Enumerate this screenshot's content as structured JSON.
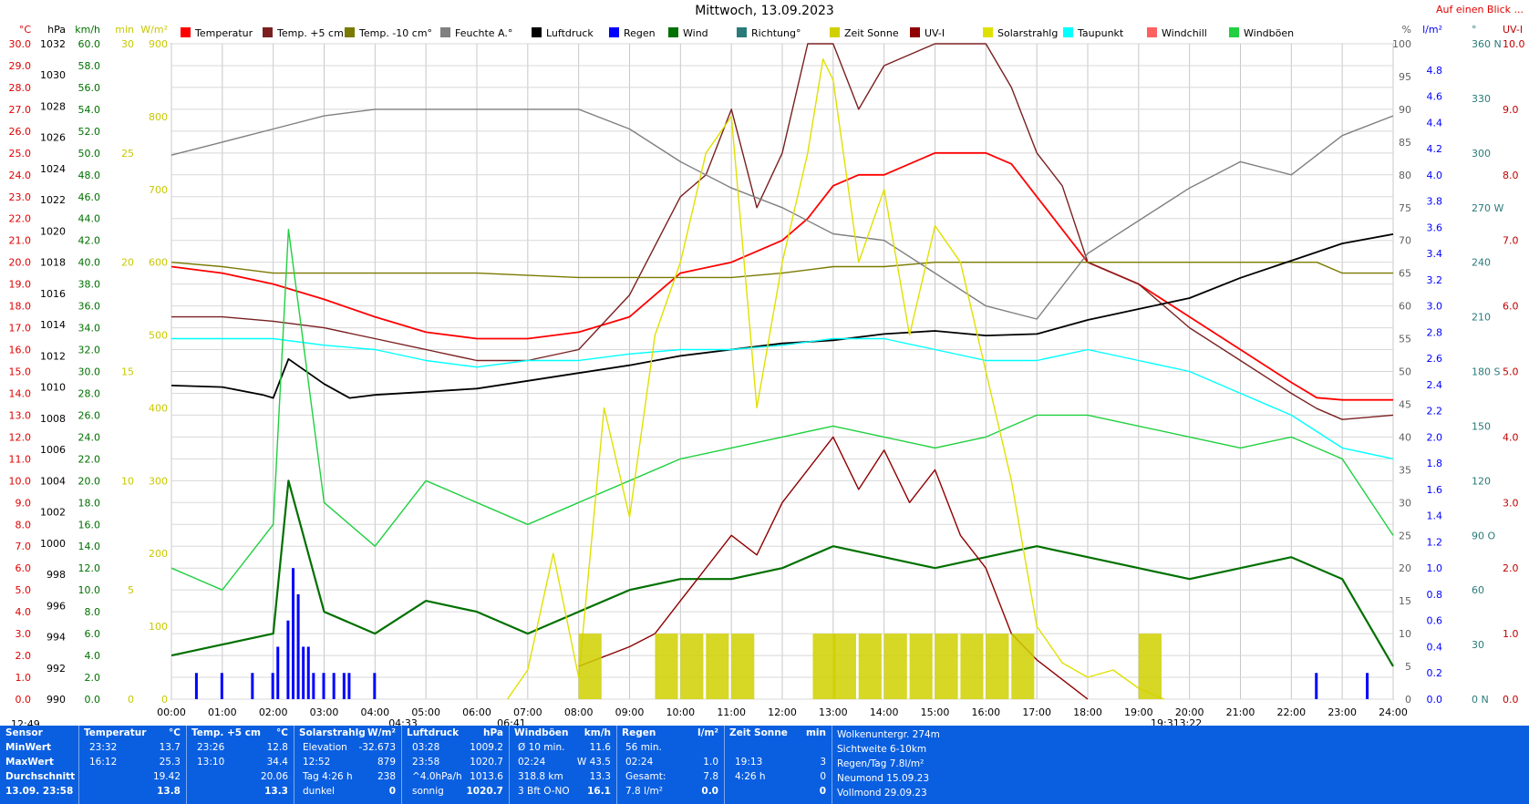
{
  "title": "Mittwoch, 13.09.2023",
  "corner_link": "Auf einen Blick ...",
  "legend": [
    {
      "label": "Temperatur",
      "color": "#ff0000"
    },
    {
      "label": "Temp. +5 cm°",
      "color": "#7a2020"
    },
    {
      "label": "Temp. -10 cm°",
      "color": "#7a7a00"
    },
    {
      "label": "Feuchte A.°",
      "color": "#808080"
    },
    {
      "label": "Luftdruck",
      "color": "#000000"
    },
    {
      "label": "Regen",
      "color": "#0000ff"
    },
    {
      "label": "Wind",
      "color": "#007000"
    },
    {
      "label": "Richtung°",
      "color": "#2a7a7a"
    },
    {
      "label": "Zeit Sonne",
      "color": "#d0d000"
    },
    {
      "label": "UV-I",
      "color": "#900000"
    },
    {
      "label": "Solarstrahlg",
      "color": "#e0e000"
    },
    {
      "label": "Taupunkt",
      "color": "#00ffff"
    },
    {
      "label": "Windchill",
      "color": "#ff6060"
    },
    {
      "label": "Windböen",
      "color": "#20d040"
    }
  ],
  "axes": {
    "temp": {
      "unit": "°C",
      "color": "#e00000",
      "ticks": [
        "30.0",
        "29.0",
        "28.0",
        "27.0",
        "26.0",
        "25.0",
        "24.0",
        "23.0",
        "22.0",
        "21.0",
        "20.0",
        "19.0",
        "18.0",
        "17.0",
        "16.0",
        "15.0",
        "14.0",
        "13.0",
        "12.0",
        "11.0",
        "10.0",
        "9.0",
        "8.0",
        "7.0",
        "6.0",
        "5.0",
        "4.0",
        "3.0",
        "2.0",
        "1.0",
        "0.0"
      ]
    },
    "hpa": {
      "unit": "hPa",
      "color": "#000000",
      "ticks": [
        "1032",
        "1030",
        "1028",
        "1026",
        "1024",
        "1022",
        "1020",
        "1018",
        "1016",
        "1014",
        "1012",
        "1010",
        "1008",
        "1006",
        "1004",
        "1002",
        "1000",
        "998",
        "996",
        "994",
        "992",
        "990"
      ]
    },
    "kmh": {
      "unit": "km/h",
      "color": "#007000",
      "ticks": [
        "60.0",
        "58.0",
        "56.0",
        "54.0",
        "52.0",
        "50.0",
        "48.0",
        "46.0",
        "44.0",
        "42.0",
        "40.0",
        "38.0",
        "36.0",
        "34.0",
        "32.0",
        "30.0",
        "28.0",
        "26.0",
        "24.0",
        "22.0",
        "20.0",
        "18.0",
        "16.0",
        "14.0",
        "12.0",
        "10.0",
        "8.0",
        "6.0",
        "4.0",
        "2.0",
        "0.0"
      ]
    },
    "min": {
      "unit": "min",
      "color": "#c8c800",
      "ticks": [
        "30",
        "25",
        "20",
        "15",
        "10",
        "5",
        "0"
      ]
    },
    "wm2": {
      "unit": "W/m²",
      "color": "#c8c800",
      "ticks": [
        "900",
        "800",
        "700",
        "600",
        "500",
        "400",
        "300",
        "200",
        "100",
        "0"
      ]
    },
    "pct": {
      "unit": "%",
      "color": "#606060",
      "ticks": [
        "100",
        "95",
        "90",
        "85",
        "80",
        "75",
        "70",
        "65",
        "60",
        "55",
        "50",
        "45",
        "40",
        "35",
        "30",
        "25",
        "20",
        "15",
        "10",
        "5",
        "0"
      ]
    },
    "rain": {
      "unit": "l/m²",
      "color": "#0000ff",
      "ticks": [
        "4.8",
        "4.6",
        "4.4",
        "4.2",
        "4.0",
        "3.8",
        "3.6",
        "3.4",
        "3.2",
        "3.0",
        "2.8",
        "2.6",
        "2.4",
        "2.2",
        "2.0",
        "1.8",
        "1.6",
        "1.4",
        "1.2",
        "1.0",
        "0.8",
        "0.6",
        "0.4",
        "0.2",
        "0.0"
      ]
    },
    "dir": {
      "unit": "°",
      "color": "#2a7a7a",
      "ticks": [
        "360 N",
        "330",
        "300",
        "270 W",
        "240",
        "210",
        "180 S",
        "150",
        "120",
        "90  O",
        "60",
        "30",
        "0   N"
      ]
    },
    "uv": {
      "unit": "UV-I",
      "color": "#c00000",
      "ticks": [
        "10.0",
        "9.0",
        "8.0",
        "7.0",
        "6.0",
        "5.0",
        "4.0",
        "3.0",
        "2.0",
        "1.0",
        "0.0"
      ]
    },
    "time": [
      "00:00",
      "01:00",
      "02:00",
      "03:00",
      "04:00",
      "05:00",
      "06:00",
      "07:00",
      "08:00",
      "09:00",
      "10:00",
      "11:00",
      "12:00",
      "13:00",
      "14:00",
      "15:00",
      "16:00",
      "17:00",
      "18:00",
      "19:00",
      "20:00",
      "21:00",
      "22:00",
      "23:00",
      "24:00"
    ]
  },
  "markers": {
    "left_time": "12:49",
    "sunrise": "04:33",
    "dawn": "06:41",
    "sunset": "19:31",
    "dusk": "3:22"
  },
  "chart_data": {
    "type": "line",
    "title": "Mittwoch, 13.09.2023",
    "x_unit": "hour of day",
    "xlim": [
      0,
      24
    ],
    "series": [
      {
        "name": "Temperatur",
        "axis": "temp",
        "x": [
          0,
          1,
          2,
          3,
          4,
          5,
          6,
          7,
          8,
          9,
          10,
          11,
          12,
          12.5,
          13,
          13.5,
          14,
          15,
          16,
          16.5,
          17,
          17.5,
          18,
          19,
          20,
          21,
          22,
          22.5,
          23,
          24
        ],
        "values": [
          19.8,
          19.5,
          19.0,
          18.3,
          17.5,
          16.8,
          16.5,
          16.5,
          16.8,
          17.5,
          19.5,
          20.0,
          21.0,
          22.0,
          23.5,
          24.0,
          24.0,
          25.0,
          25.0,
          24.5,
          23.0,
          21.5,
          20.0,
          19.0,
          17.5,
          16.0,
          14.5,
          13.8,
          13.7,
          13.7
        ]
      },
      {
        "name": "Temp. +5 cm°",
        "axis": "temp",
        "x": [
          0,
          1,
          2,
          3,
          4,
          5,
          6,
          7,
          8,
          9,
          10,
          10.5,
          11,
          11.5,
          12,
          12.5,
          13,
          13.5,
          14,
          15,
          16,
          16.5,
          17,
          17.5,
          18,
          19,
          20,
          21,
          22,
          22.5,
          23,
          24
        ],
        "values": [
          17.5,
          17.5,
          17.3,
          17.0,
          16.5,
          16.0,
          15.5,
          15.5,
          16.0,
          18.5,
          23.0,
          24.0,
          27.0,
          22.5,
          25.0,
          30.0,
          30.0,
          27.0,
          29.0,
          30.0,
          30.0,
          28.0,
          25.0,
          23.5,
          20.0,
          19.0,
          17.0,
          15.5,
          14.0,
          13.3,
          12.8,
          13.0
        ]
      },
      {
        "name": "Temp. -10 cm°",
        "axis": "temp",
        "x": [
          0,
          1,
          2,
          4,
          6,
          8,
          9,
          10,
          11,
          12,
          13,
          14,
          15,
          16,
          17,
          18,
          19,
          20,
          21,
          22,
          22.5,
          23,
          24
        ],
        "values": [
          20.0,
          19.8,
          19.5,
          19.5,
          19.5,
          19.3,
          19.3,
          19.3,
          19.3,
          19.5,
          19.8,
          19.8,
          20.0,
          20.0,
          20.0,
          20.0,
          20.0,
          20.0,
          20.0,
          20.0,
          20.0,
          19.5,
          19.5
        ]
      },
      {
        "name": "Feuchte A.°",
        "axis": "pct",
        "x": [
          0,
          1,
          2,
          3,
          4,
          5,
          6,
          7,
          8,
          9,
          10,
          11,
          12,
          13,
          14,
          15,
          16,
          17,
          18,
          19,
          20,
          21,
          22,
          23,
          24
        ],
        "values": [
          83,
          85,
          87,
          89,
          90,
          90,
          90,
          90,
          90,
          87,
          82,
          78,
          75,
          71,
          70,
          65,
          60,
          58,
          68,
          73,
          78,
          82,
          80,
          86,
          89
        ]
      },
      {
        "name": "Luftdruck",
        "axis": "hpa",
        "x": [
          0,
          1,
          1.8,
          2,
          2.3,
          3,
          3.5,
          4,
          5,
          6,
          7,
          8,
          9,
          10,
          11,
          12,
          13,
          14,
          15,
          16,
          17,
          18,
          19,
          20,
          21,
          22,
          23,
          24
        ],
        "values": [
          1010.1,
          1010.0,
          1009.5,
          1009.3,
          1011.8,
          1010.2,
          1009.3,
          1009.5,
          1009.7,
          1009.9,
          1010.4,
          1010.9,
          1011.4,
          1012.0,
          1012.4,
          1012.8,
          1013.0,
          1013.4,
          1013.6,
          1013.3,
          1013.4,
          1014.3,
          1015.0,
          1015.7,
          1017.0,
          1018.1,
          1019.2,
          1019.8
        ]
      },
      {
        "name": "Taupunkt",
        "axis": "temp",
        "x": [
          0,
          1,
          2,
          3,
          4,
          5,
          6,
          7,
          8,
          9,
          10,
          11,
          12,
          13,
          14,
          15,
          16,
          17,
          18,
          19,
          20,
          21,
          22,
          23,
          24
        ],
        "values": [
          16.5,
          16.5,
          16.5,
          16.2,
          16.0,
          15.5,
          15.2,
          15.5,
          15.5,
          15.8,
          16.0,
          16.0,
          16.2,
          16.5,
          16.5,
          16.0,
          15.5,
          15.5,
          16.0,
          15.5,
          15.0,
          14.0,
          13.0,
          11.5,
          11.0
        ]
      },
      {
        "name": "Wind",
        "axis": "kmh",
        "x": [
          0,
          1,
          2,
          2.3,
          3,
          4,
          5,
          6,
          7,
          8,
          9,
          10,
          11,
          12,
          13,
          14,
          15,
          16,
          17,
          18,
          19,
          20,
          21,
          22,
          23,
          24
        ],
        "values": [
          4,
          5,
          6,
          20,
          8,
          6,
          9,
          8,
          6,
          8,
          10,
          11,
          11,
          12,
          14,
          13,
          12,
          13,
          14,
          13,
          12,
          11,
          12,
          13,
          11,
          3
        ]
      },
      {
        "name": "Windböen",
        "axis": "kmh",
        "x": [
          0,
          1,
          2,
          2.3,
          3,
          4,
          5,
          6,
          7,
          8,
          9,
          10,
          11,
          12,
          13,
          14,
          15,
          16,
          17,
          18,
          19,
          20,
          21,
          22,
          23,
          24
        ],
        "values": [
          12,
          10,
          16,
          43,
          18,
          14,
          20,
          18,
          16,
          18,
          20,
          22,
          23,
          24,
          25,
          24,
          23,
          24,
          26,
          26,
          25,
          24,
          23,
          24,
          22,
          15
        ]
      },
      {
        "name": "Solarstrahlg",
        "axis": "wm2",
        "x": [
          6.6,
          7,
          7.5,
          8,
          8.5,
          9,
          9.5,
          10,
          10.5,
          11,
          11.5,
          12,
          12.5,
          12.8,
          13,
          13.5,
          14,
          14.5,
          15,
          15.5,
          16,
          16.5,
          17,
          17.5,
          18,
          18.5,
          19,
          19.5
        ],
        "values": [
          0,
          40,
          200,
          30,
          400,
          250,
          500,
          600,
          750,
          800,
          400,
          600,
          750,
          879,
          850,
          600,
          700,
          500,
          650,
          600,
          450,
          300,
          100,
          50,
          30,
          40,
          15,
          0
        ]
      },
      {
        "name": "Regen",
        "axis": "rain",
        "x": [
          0.5,
          1.0,
          1.6,
          2.0,
          2.1,
          2.3,
          2.4,
          2.5,
          2.6,
          2.7,
          2.8,
          3.0,
          3.2,
          3.4,
          3.5,
          4.0,
          22.5,
          23.5
        ],
        "values": [
          0.2,
          0.2,
          0.2,
          0.2,
          0.4,
          0.6,
          1.0,
          0.8,
          0.4,
          0.4,
          0.2,
          0.2,
          0.2,
          0.2,
          0.2,
          0.2,
          0.2,
          0.2
        ]
      },
      {
        "name": "UV-I",
        "axis": "uv",
        "x": [
          8,
          9,
          9.5,
          10,
          10.5,
          11,
          11.5,
          12,
          12.5,
          13,
          13.5,
          14,
          14.5,
          15,
          15.5,
          16,
          16.5,
          17,
          17.5,
          18
        ],
        "values": [
          0.5,
          0.8,
          1.0,
          1.5,
          2.0,
          2.5,
          2.2,
          3.0,
          3.5,
          4.0,
          3.2,
          3.8,
          3.0,
          3.5,
          2.5,
          2.0,
          1.0,
          0.6,
          0.3,
          0.0
        ]
      },
      {
        "name": "Zeit Sonne",
        "axis": "min",
        "x": [
          8.0,
          9.5,
          10.0,
          10.5,
          11.0,
          12.6,
          13.0,
          13.5,
          14.0,
          14.5,
          15.0,
          15.5,
          16.0,
          16.5,
          19.0
        ],
        "values": [
          3,
          3,
          3,
          3,
          3,
          3,
          3,
          3,
          3,
          3,
          3,
          3,
          3,
          3,
          3
        ]
      }
    ]
  },
  "table": {
    "header": {
      "sensor": "Sensor",
      "temp": "Temperatur",
      "temp_unit": "°C",
      "t5": "Temp. +5 cm",
      "t5_unit": "°C",
      "solar": "Solarstrahlg",
      "solar_unit": "W/m²",
      "press": "Luftdruck",
      "press_unit": "hPa",
      "gust": "Windböen",
      "gust_unit": "km/h",
      "rain": "Regen",
      "rain_unit": "l/m²",
      "sun": "Zeit Sonne",
      "sun_unit": "min"
    },
    "rows": [
      {
        "label": "MinWert",
        "temp_t": "23:32",
        "temp_v": "13.7",
        "t5_t": "23:26",
        "t5_v": "12.8",
        "solar_l": "Elevation",
        "solar_v": "-32.673",
        "press_t": "03:28",
        "press_v": "1009.2",
        "gust_l": "Ø 10 min.",
        "gust_v": "11.6",
        "rain_l": "56 min.",
        "rain_v": "",
        "sun_l": "",
        "sun_v": "",
        "info": "Wolkenuntergr.  274m"
      },
      {
        "label": "MaxWert",
        "temp_t": "16:12",
        "temp_v": "25.3",
        "t5_t": "13:10",
        "t5_v": "34.4",
        "solar_l": "12:52",
        "solar_v": "879",
        "press_t": "23:58",
        "press_v": "1020.7",
        "gust_l": "02:24",
        "gust_v": "W 43.5",
        "rain_l": "02:24",
        "rain_v": "1.0",
        "sun_l": "19:13",
        "sun_v": "3",
        "info": "Sichtweite    6-10km"
      },
      {
        "label": "Durchschnitt",
        "temp_t": "",
        "temp_v": "19.42",
        "t5_t": "",
        "t5_v": "20.06",
        "solar_l": "Tag 4:26 h",
        "solar_v": "238",
        "press_t": "^4.0hPa/h",
        "press_v": "1013.6",
        "gust_l": "318.8 km",
        "gust_v": "13.3",
        "rain_l": "Gesamt:",
        "rain_v": "7.8",
        "sun_l": "4:26 h",
        "sun_v": "0",
        "info": "Regen/Tag  7.8l/m²"
      },
      {
        "label": "13.09. 23:58",
        "temp_t": "",
        "temp_v": "13.8",
        "t5_t": "",
        "t5_v": "13.3",
        "solar_l": "dunkel",
        "solar_v": "0",
        "press_t": "sonnig",
        "press_v": "1020.7",
        "gust_l": "3 Bft O-NO",
        "gust_v": "16.1",
        "rain_l": "7.8 l/m²",
        "rain_v": "0.0",
        "sun_l": "",
        "sun_v": "0",
        "info": "Neumond   15.09.23"
      },
      {
        "label": "",
        "temp_t": "",
        "temp_v": "",
        "t5_t": "",
        "t5_v": "",
        "solar_l": "",
        "solar_v": "",
        "press_t": "",
        "press_v": "",
        "gust_l": "",
        "gust_v": "",
        "rain_l": "",
        "rain_v": "",
        "sun_l": "",
        "sun_v": "",
        "info": "Vollmond   29.09.23"
      }
    ]
  }
}
